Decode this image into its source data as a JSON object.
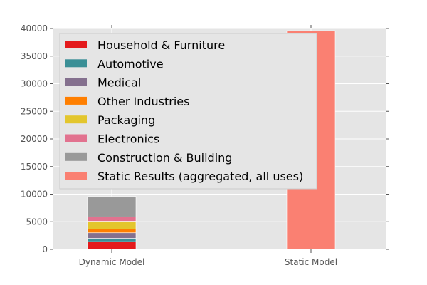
{
  "chart_data": {
    "type": "bar",
    "stacked": true,
    "categories": [
      "Dynamic Model",
      "Static Model"
    ],
    "ylim": [
      0,
      40000
    ],
    "yticks": [
      0,
      5000,
      10000,
      15000,
      20000,
      25000,
      30000,
      35000,
      40000
    ],
    "grid": true,
    "legend_position": "top-left",
    "series": [
      {
        "name": "Household & Furniture",
        "color": "#e41a1c",
        "values": [
          1400,
          0
        ]
      },
      {
        "name": "Automotive",
        "color": "#3a8f96",
        "values": [
          600,
          0
        ]
      },
      {
        "name": "Medical",
        "color": "#84708e",
        "values": [
          1000,
          0
        ]
      },
      {
        "name": "Other Industries",
        "color": "#ff7f00",
        "values": [
          700,
          0
        ]
      },
      {
        "name": "Packaging",
        "color": "#e3c62d",
        "values": [
          1400,
          0
        ]
      },
      {
        "name": "Electronics",
        "color": "#e2728f",
        "values": [
          800,
          0
        ]
      },
      {
        "name": "Construction & Building",
        "color": "#999999",
        "values": [
          3700,
          0
        ]
      },
      {
        "name": "Static Results (aggregated, all uses)",
        "color": "#fa8072",
        "values": [
          0,
          39600
        ]
      }
    ]
  }
}
